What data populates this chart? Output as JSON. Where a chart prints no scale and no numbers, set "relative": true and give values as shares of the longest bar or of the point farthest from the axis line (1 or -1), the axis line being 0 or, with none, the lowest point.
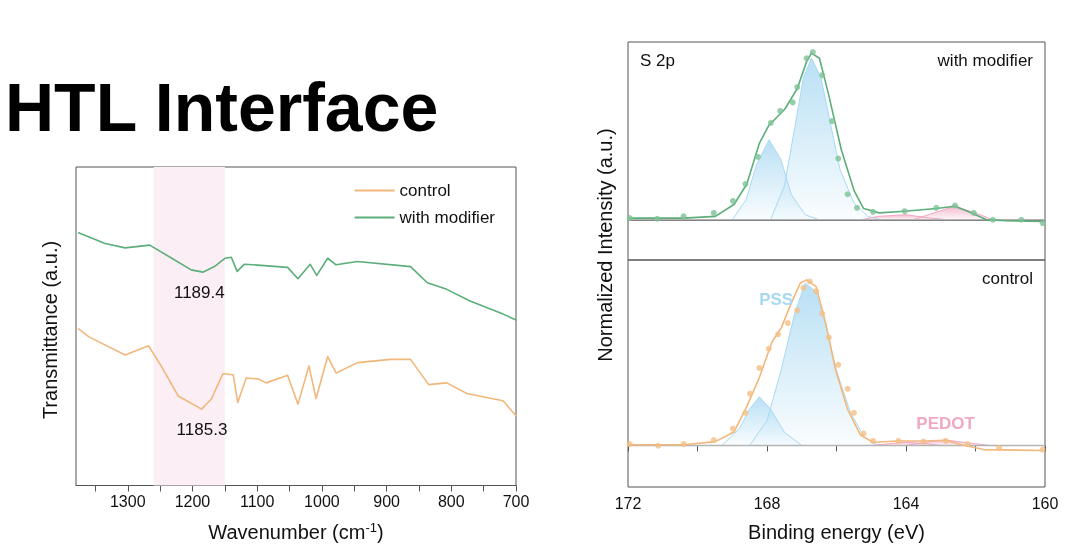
{
  "chart_data": [
    {
      "type": "line",
      "title": "HTL Interface",
      "xlabel": "Wavenumber (cm$^{-1}$)",
      "ylabel": "Transmittance (a.u.)",
      "relative": true,
      "xlim": [
        1380,
        700
      ],
      "xticks": [
        {
          "value": 1350,
          "label": null
        },
        1300,
        {
          "value": 1250,
          "label": null
        },
        1200,
        {
          "value": 1150,
          "label": null
        },
        1100,
        {
          "value": 1050,
          "label": null
        },
        1000,
        {
          "value": 950,
          "label": null
        },
        900,
        {
          "value": 850,
          "label": null
        },
        800,
        {
          "value": 750,
          "label": null
        },
        700
      ],
      "legend": "top right",
      "bands": [
        {
          "axis": "x",
          "from": 1260,
          "to": 1150,
          "color": "#fbeef4"
        }
      ],
      "annotations": [
        {
          "text": "1189.4",
          "x": 1189.4,
          "y": 0.844
        },
        {
          "text": "1185.3",
          "x": 1185.3,
          "y": 0.302
        }
      ],
      "series": [
        {
          "name": "control",
          "color": "#f2b77c",
          "x": [
            1376,
            1360,
            1304,
            1268,
            1248,
            1222,
            1186,
            1171,
            1153,
            1137,
            1130,
            1117,
            1099,
            1086,
            1053,
            1037,
            1020,
            1009,
            991,
            978,
            945,
            894,
            863,
            835,
            807,
            776,
            720,
            700
          ],
          "values": [
            0.62,
            0.588,
            0.516,
            0.553,
            0.471,
            0.354,
            0.302,
            0.341,
            0.442,
            0.438,
            0.328,
            0.425,
            0.422,
            0.406,
            0.436,
            0.322,
            0.473,
            0.344,
            0.51,
            0.445,
            0.486,
            0.499,
            0.499,
            0.399,
            0.406,
            0.364,
            0.335,
            0.276
          ]
        },
        {
          "name": "with modifier",
          "color": "#5cae7a",
          "x": [
            1376,
            1335,
            1304,
            1266,
            1232,
            1202,
            1184,
            1166,
            1150,
            1140,
            1131,
            1120,
            1107,
            1089,
            1053,
            1037,
            1018,
            1008,
            991,
            978,
            945,
            863,
            837,
            807,
            771,
            720,
            700
          ],
          "values": [
            1.0,
            0.957,
            0.94,
            0.951,
            0.899,
            0.853,
            0.844,
            0.866,
            0.899,
            0.903,
            0.847,
            0.875,
            0.873,
            0.87,
            0.863,
            0.818,
            0.875,
            0.831,
            0.899,
            0.873,
            0.886,
            0.866,
            0.802,
            0.776,
            0.73,
            0.678,
            0.655
          ]
        }
      ]
    },
    {
      "type": "line",
      "relative": true,
      "xlim": [
        172,
        160
      ],
      "ylabel": "Normalized Intensity (a.u.)",
      "annotations": [
        "S 2p",
        "with modifier"
      ],
      "series": [
        {
          "type": "area",
          "color": "#a9d9f2",
          "x": [
            169.0,
            168.6,
            168.3,
            167.94,
            167.6,
            167.3,
            166.9,
            166.5
          ],
          "values": [
            0,
            0.12,
            0.33,
            0.477,
            0.36,
            0.15,
            0.03,
            0
          ]
        },
        {
          "type": "area",
          "color": "#a9d9f2",
          "x": [
            167.9,
            167.5,
            167.2,
            166.95,
            166.72,
            166.45,
            166.2,
            165.9,
            165.5,
            165.1,
            164.7
          ],
          "values": [
            0,
            0.2,
            0.55,
            0.85,
            0.963,
            0.85,
            0.6,
            0.3,
            0.1,
            0.02,
            0
          ]
        },
        {
          "type": "area",
          "color": "#f2a7c3",
          "x": [
            165.3,
            164.8,
            164.0,
            163.3,
            162.8
          ],
          "values": [
            0,
            0.02,
            0.03,
            0.01,
            0
          ]
        },
        {
          "type": "area",
          "color": "#f2a7c3",
          "x": [
            163.8,
            163.2,
            162.6,
            162.0,
            161.5
          ],
          "values": [
            0,
            0.04,
            0.081,
            0.04,
            0
          ]
        },
        {
          "color": "#b4b4b4",
          "x": [
            172,
            160
          ],
          "values": [
            0,
            0
          ]
        },
        {
          "color": "#5cae7a",
          "x": [
            171.95,
            170.4,
            169.49,
            168.95,
            168.58,
            168.22,
            167.95,
            167.49,
            167.13,
            166.86,
            166.72,
            166.49,
            166.22,
            165.86,
            165.49,
            165.22,
            164.77,
            164.04,
            163.13,
            162.59,
            162.23,
            161.68,
            161.14,
            160.07
          ],
          "values": [
            0.01,
            0.01,
            0.02,
            0.091,
            0.213,
            0.456,
            0.562,
            0.659,
            0.781,
            0.943,
            0.994,
            0.963,
            0.74,
            0.416,
            0.172,
            0.067,
            0.041,
            0.051,
            0.067,
            0.081,
            0.051,
            0,
            -0.006,
            -0.01
          ]
        },
        {
          "type": "scatter",
          "color": "#7dc295",
          "x": [
            171.95,
            171.16,
            170.4,
            169.53,
            168.98,
            168.62,
            168.26,
            167.89,
            167.62,
            167.26,
            167.13,
            166.86,
            166.68,
            166.41,
            166.13,
            165.95,
            165.68,
            165.41,
            164.95,
            164.04,
            163.13,
            162.59,
            162.05,
            161.5,
            160.68,
            160.07
          ],
          "values": [
            0.01,
            0.006,
            0.02,
            0.041,
            0.112,
            0.213,
            0.375,
            0.578,
            0.649,
            0.7,
            0.791,
            0.963,
            1.0,
            0.862,
            0.588,
            0.365,
            0.152,
            0.071,
            0.047,
            0.051,
            0.071,
            0.085,
            0.041,
            0,
            0,
            -0.02
          ]
        }
      ]
    },
    {
      "type": "line",
      "relative": true,
      "xlim": [
        172,
        160
      ],
      "xlabel": "Binding energy (eV)",
      "xticks": [
        172,
        {
          "value": 170,
          "label": null
        },
        168,
        {
          "value": 166,
          "label": null
        },
        164,
        {
          "value": 162,
          "label": null
        },
        160
      ],
      "annotations": [
        "control"
      ],
      "series": [
        {
          "type": "area",
          "color": "#a9d9f2",
          "x": [
            169.3,
            168.8,
            168.5,
            168.22,
            167.9,
            167.5,
            167.0
          ],
          "values": [
            0,
            0.1,
            0.22,
            0.294,
            0.22,
            0.08,
            0
          ]
        },
        {
          "type": "area",
          "name": "PSS",
          "color": "#a9d9f2",
          "x": [
            168.5,
            168.0,
            167.6,
            167.2,
            166.9,
            166.6,
            166.3,
            166.0,
            165.6,
            165.2,
            164.8
          ],
          "values": [
            0,
            0.15,
            0.45,
            0.8,
            0.98,
            0.93,
            0.72,
            0.45,
            0.2,
            0.05,
            0
          ]
        },
        {
          "type": "area",
          "color": "#f2a7c3",
          "x": [
            165.0,
            164.5,
            164.0,
            163.4,
            163.0
          ],
          "values": [
            0,
            0.01,
            0.02,
            0.01,
            0
          ]
        },
        {
          "type": "area",
          "name": "PEDOT",
          "color": "#f2a7c3",
          "x": [
            164.0,
            163.4,
            162.86,
            162.2,
            161.6
          ],
          "values": [
            0,
            0.02,
            0.033,
            0.015,
            0
          ]
        },
        {
          "color": "#b4b4b4",
          "x": [
            172,
            160
          ],
          "values": [
            0,
            0
          ]
        },
        {
          "color": "#f2b77c",
          "x": [
            171.95,
            170.4,
            169.49,
            168.95,
            168.58,
            168.22,
            167.86,
            167.59,
            167.31,
            167.04,
            166.86,
            166.59,
            166.31,
            166.04,
            165.68,
            165.31,
            164.95,
            164.22,
            163.5,
            162.86,
            162.41,
            161.77,
            160.07
          ],
          "values": [
            0.004,
            0.004,
            0.023,
            0.081,
            0.236,
            0.41,
            0.623,
            0.71,
            0.855,
            0.981,
            1.0,
            0.961,
            0.739,
            0.468,
            0.217,
            0.062,
            0.019,
            0.027,
            0.027,
            0.031,
            0.004,
            -0.025,
            -0.031
          ]
        },
        {
          "type": "scatter",
          "color": "#f4bf85",
          "x": [
            171.95,
            171.13,
            170.4,
            169.53,
            168.98,
            168.62,
            168.49,
            168.22,
            167.95,
            167.68,
            167.4,
            167.13,
            166.95,
            166.77,
            166.59,
            166.41,
            166.22,
            165.95,
            165.68,
            165.5,
            165.22,
            164.95,
            164.22,
            163.5,
            162.86,
            162.23,
            161.32,
            160.07
          ],
          "values": [
            0.008,
            -0.002,
            0.008,
            0.033,
            0.101,
            0.197,
            0.313,
            0.468,
            0.584,
            0.671,
            0.739,
            0.816,
            0.952,
            0.99,
            0.932,
            0.797,
            0.652,
            0.487,
            0.342,
            0.197,
            0.072,
            0.027,
            0.027,
            0.023,
            0.027,
            0.008,
            -0.015,
            -0.025
          ]
        }
      ]
    }
  ]
}
